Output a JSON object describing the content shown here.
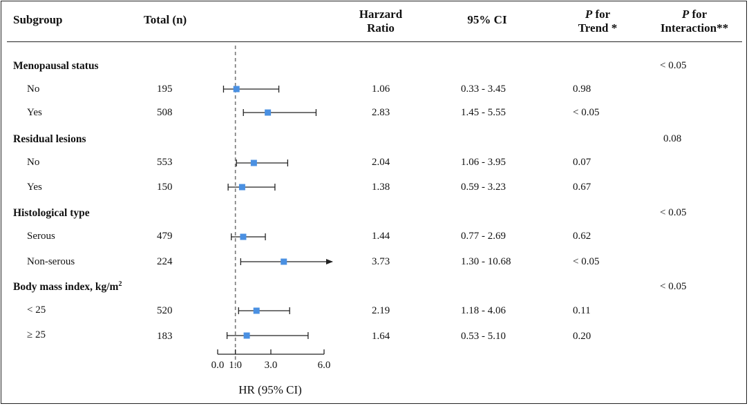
{
  "headers": {
    "subgroup": "Subgroup",
    "total": "Total (n)",
    "hr_line1": "Harzard",
    "hr_line2": "Ratio",
    "ci": "95% CI",
    "trend_p": "P",
    "trend_rest": " for",
    "trend_line2": "Trend *",
    "inter_p": "P",
    "inter_rest": " for",
    "inter_line2": "Interaction**"
  },
  "groups": [
    {
      "label": "Menopausal status",
      "interaction": "< 0.05",
      "rows": [
        {
          "label": "No",
          "n": "195",
          "hr": "1.06",
          "ci": "0.33 - 3.45",
          "trend": "0.98"
        },
        {
          "label": "Yes",
          "n": "508",
          "hr": "2.83",
          "ci": "1.45 - 5.55",
          "trend": "< 0.05"
        }
      ]
    },
    {
      "label": "Residual lesions",
      "interaction": "0.08",
      "rows": [
        {
          "label": "No",
          "n": "553",
          "hr": "2.04",
          "ci": "1.06 - 3.95",
          "trend": "0.07"
        },
        {
          "label": "Yes",
          "n": "150",
          "hr": "1.38",
          "ci": "0.59 - 3.23",
          "trend": "0.67"
        }
      ]
    },
    {
      "label": "Histological type",
      "interaction": "< 0.05",
      "rows": [
        {
          "label": "Serous",
          "n": "479",
          "hr": "1.44",
          "ci": "0.77 - 2.69",
          "trend": "0.62"
        },
        {
          "label": "Non-serous",
          "n": "224",
          "hr": "3.73",
          "ci": "1.30 - 10.68",
          "trend": "< 0.05"
        }
      ]
    },
    {
      "label": "Body mass index, kg/m",
      "label_sup": "2",
      "interaction": "< 0.05",
      "rows": [
        {
          "label": "< 25",
          "n": "520",
          "hr": "2.19",
          "ci": "1.18 - 4.06",
          "trend": "0.11"
        },
        {
          "label": "≥ 25",
          "n": "183",
          "hr": "1.64",
          "ci": "0.53 - 5.10",
          "trend": "0.20"
        }
      ]
    }
  ],
  "chart_data": {
    "type": "forest",
    "xlabel": "HR (95% CI)",
    "xlim": [
      0.0,
      6.0
    ],
    "ticks": [
      0.0,
      1.0,
      3.0,
      6.0
    ],
    "tick_labels": [
      "0.0",
      "1.0",
      "3.0",
      "6.0"
    ],
    "reference_line": 1.0,
    "display_cap": 6.0,
    "series": [
      {
        "name": "Menopausal status: No",
        "hr": 1.06,
        "lower": 0.33,
        "upper": 3.45
      },
      {
        "name": "Menopausal status: Yes",
        "hr": 2.83,
        "lower": 1.45,
        "upper": 5.55
      },
      {
        "name": "Residual lesions: No",
        "hr": 2.04,
        "lower": 1.06,
        "upper": 3.95
      },
      {
        "name": "Residual lesions: Yes",
        "hr": 1.38,
        "lower": 0.59,
        "upper": 3.23
      },
      {
        "name": "Histological type: Serous",
        "hr": 1.44,
        "lower": 0.77,
        "upper": 2.69
      },
      {
        "name": "Histological type: Non-serous",
        "hr": 3.73,
        "lower": 1.3,
        "upper": 10.68
      },
      {
        "name": "Body mass index: < 25",
        "hr": 2.19,
        "lower": 1.18,
        "upper": 4.06
      },
      {
        "name": "Body mass index: ≥ 25",
        "hr": 1.64,
        "lower": 0.53,
        "upper": 5.1
      }
    ],
    "marker_color": "#4a90e2",
    "line_color": "#222222",
    "ref_color": "#777777"
  }
}
